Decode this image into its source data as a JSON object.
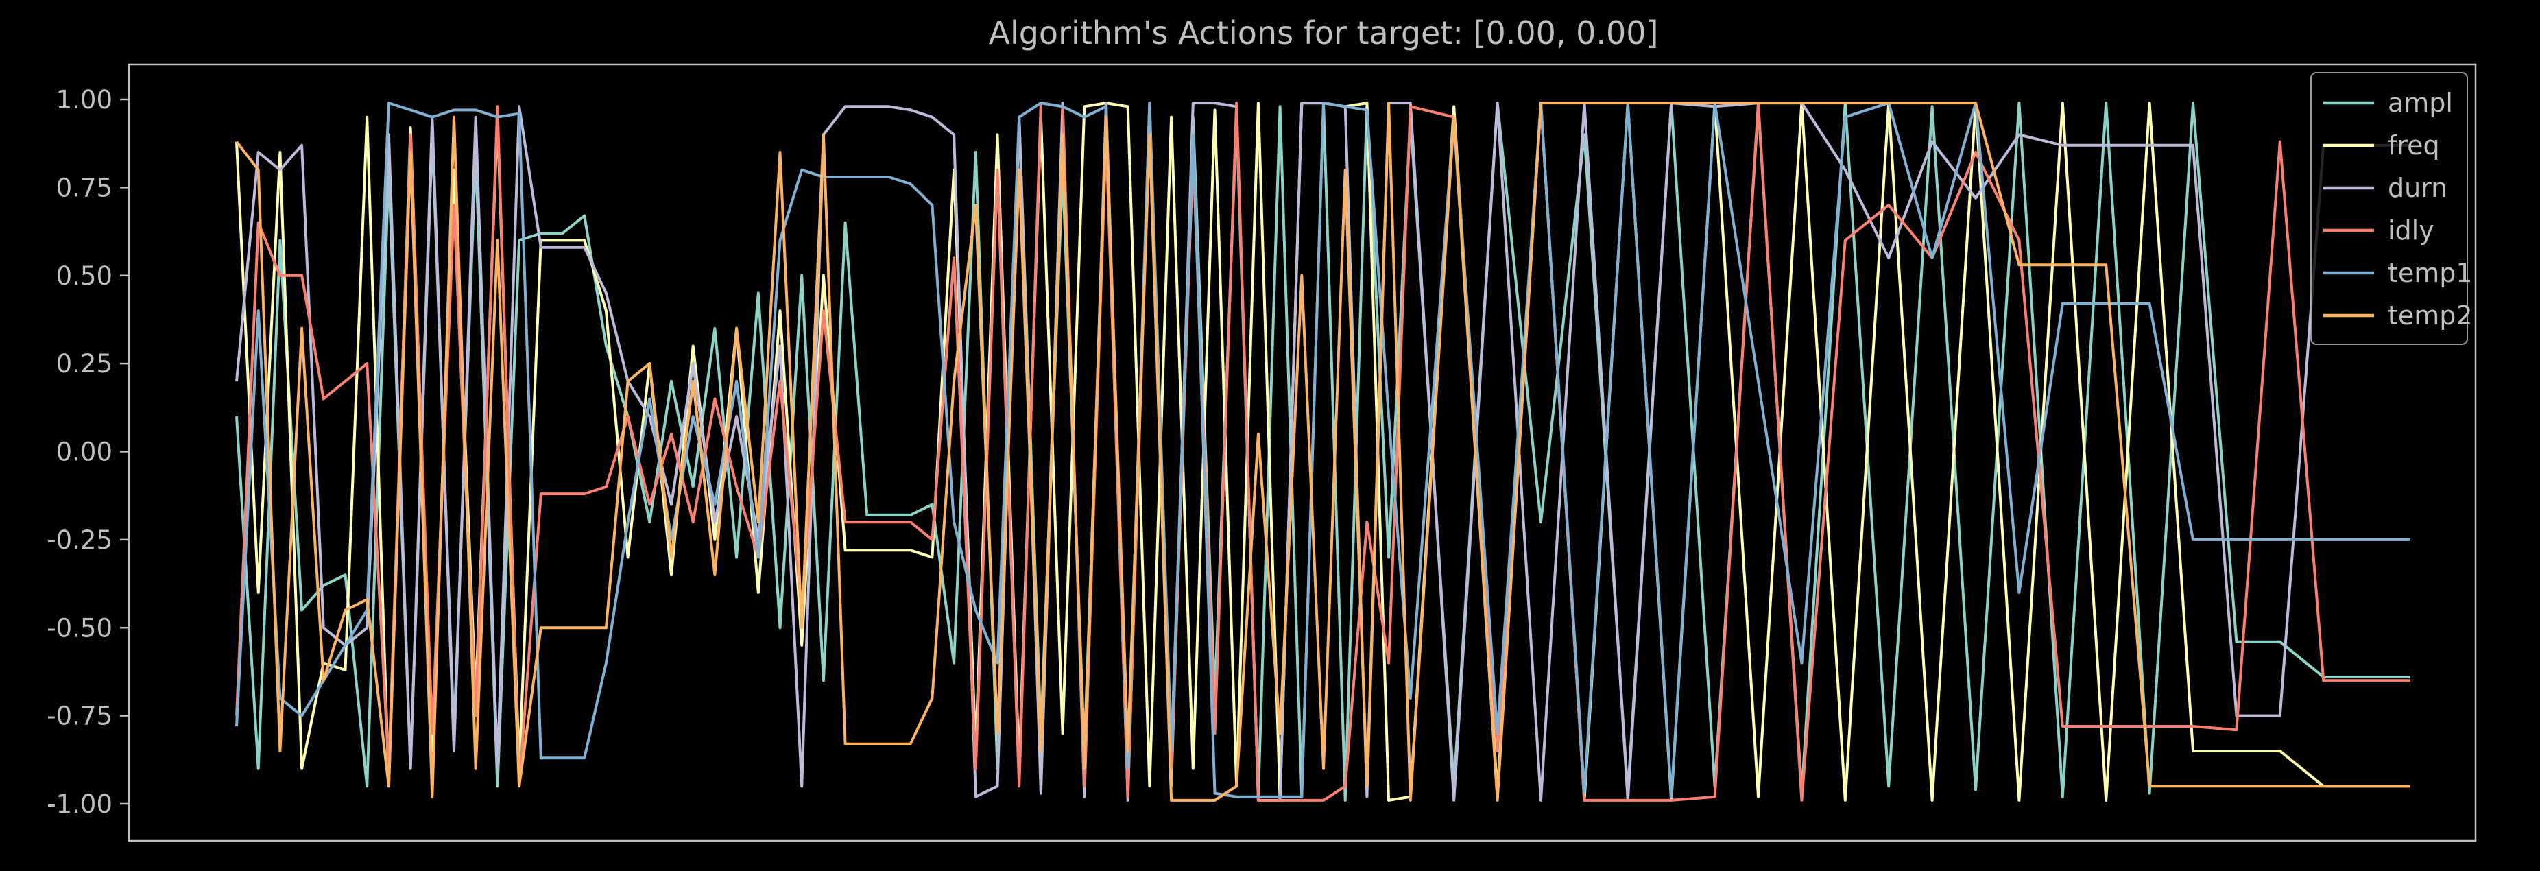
{
  "chart_data": {
    "type": "line",
    "title": "Algorithm's Actions for target:  [0.00, 0.00]",
    "xlabel": "",
    "ylabel": "",
    "xlim": [
      0,
      1000
    ],
    "ylim": [
      -1.1,
      1.1
    ],
    "y_ticks": [
      "1.00",
      "0.75",
      "0.50",
      "0.25",
      "0.00",
      "-0.25",
      "-0.50",
      "-0.75",
      "-1.00"
    ],
    "y_tick_values": [
      1.0,
      0.75,
      0.5,
      0.25,
      0.0,
      -0.25,
      -0.5,
      -0.75,
      -1.0
    ],
    "grid": false,
    "legend_position": "top-right",
    "background": "#000000",
    "series": [
      {
        "name": "ampl",
        "color": "#8dd3c7",
        "x": [
          0,
          10,
          20,
          30,
          40,
          50,
          60,
          70,
          80,
          90,
          100,
          110,
          120,
          130,
          140,
          150,
          160,
          170,
          180,
          190,
          200,
          210,
          220,
          230,
          240,
          250,
          260,
          270,
          280,
          290,
          300,
          310,
          320,
          330,
          340,
          350,
          360,
          370,
          380,
          390,
          400,
          410,
          420,
          430,
          440,
          450,
          460,
          470,
          480,
          490,
          500,
          510,
          520,
          530,
          540,
          560,
          580,
          600,
          620,
          640,
          660,
          680,
          700,
          720,
          740,
          760,
          780,
          800,
          820,
          840,
          860,
          880,
          900,
          920,
          940,
          960,
          980,
          1000
        ],
        "y": [
          0.1,
          -0.9,
          0.6,
          -0.45,
          -0.38,
          -0.35,
          -0.95,
          0.8,
          -0.9,
          0.9,
          -0.8,
          0.85,
          -0.95,
          0.6,
          0.62,
          0.62,
          0.67,
          0.3,
          0.1,
          -0.2,
          0.2,
          -0.1,
          0.35,
          -0.3,
          0.45,
          -0.5,
          0.5,
          -0.65,
          0.65,
          -0.18,
          -0.18,
          -0.18,
          -0.15,
          -0.6,
          0.85,
          -0.9,
          0.95,
          -0.8,
          0.8,
          -0.85,
          0.9,
          -0.95,
          0.98,
          -0.9,
          0.95,
          -0.7,
          0.95,
          -0.98,
          0.98,
          -0.98,
          0.99,
          -0.99,
          0.99,
          -0.3,
          0.95,
          -0.95,
          0.99,
          -0.2,
          0.9,
          -0.97,
          0.99,
          -0.95,
          0.98,
          -0.97,
          0.99,
          -0.95,
          0.98,
          -0.96,
          0.99,
          -0.98,
          0.99,
          -0.97,
          0.99,
          -0.54,
          -0.54,
          -0.64,
          -0.64,
          -0.64
        ]
      },
      {
        "name": "freq",
        "color": "#ffffb3",
        "x": [
          0,
          10,
          20,
          30,
          40,
          50,
          60,
          70,
          80,
          90,
          100,
          110,
          120,
          130,
          140,
          150,
          160,
          170,
          180,
          190,
          200,
          210,
          220,
          230,
          240,
          250,
          260,
          270,
          280,
          290,
          300,
          310,
          320,
          330,
          340,
          350,
          360,
          370,
          380,
          390,
          400,
          410,
          420,
          430,
          440,
          450,
          460,
          470,
          480,
          490,
          500,
          510,
          520,
          530,
          540,
          560,
          580,
          600,
          620,
          640,
          660,
          680,
          700,
          720,
          740,
          760,
          780,
          800,
          820,
          840,
          860,
          880,
          900,
          920,
          940,
          960,
          980,
          1000
        ],
        "y": [
          0.88,
          -0.4,
          0.85,
          -0.9,
          -0.6,
          -0.62,
          0.95,
          -0.95,
          0.92,
          -0.85,
          0.8,
          -0.7,
          0.95,
          -0.9,
          0.6,
          0.6,
          0.6,
          0.4,
          -0.3,
          0.25,
          -0.35,
          0.3,
          -0.25,
          0.35,
          -0.4,
          0.4,
          -0.55,
          0.5,
          -0.28,
          -0.28,
          -0.28,
          -0.28,
          -0.3,
          0.8,
          -0.85,
          0.9,
          -0.9,
          0.95,
          -0.8,
          0.98,
          0.99,
          0.98,
          -0.95,
          0.95,
          -0.9,
          0.97,
          -0.95,
          0.99,
          -0.99,
          0.99,
          0.99,
          0.98,
          0.99,
          -0.99,
          -0.98,
          0.98,
          -0.97,
          0.99,
          -0.99,
          0.99,
          -0.99,
          0.99,
          -0.98,
          0.99,
          -0.99,
          0.99,
          -0.99,
          0.99,
          -0.99,
          0.99,
          -0.99,
          0.99,
          -0.85,
          -0.85,
          -0.85,
          -0.95,
          -0.95,
          -0.95
        ]
      },
      {
        "name": "durn",
        "color": "#bebada",
        "x": [
          0,
          10,
          20,
          30,
          40,
          50,
          60,
          70,
          80,
          90,
          100,
          110,
          120,
          130,
          140,
          150,
          160,
          170,
          180,
          190,
          200,
          210,
          220,
          230,
          240,
          250,
          260,
          270,
          280,
          290,
          300,
          310,
          320,
          330,
          340,
          350,
          360,
          370,
          380,
          390,
          400,
          410,
          420,
          430,
          440,
          450,
          460,
          470,
          480,
          490,
          500,
          510,
          520,
          530,
          540,
          560,
          580,
          600,
          620,
          640,
          660,
          680,
          700,
          720,
          740,
          760,
          780,
          800,
          820,
          840,
          860,
          880,
          900,
          920,
          940,
          960,
          980,
          1000
        ],
        "y": [
          0.2,
          0.85,
          0.8,
          0.87,
          -0.5,
          -0.55,
          -0.5,
          0.9,
          -0.9,
          0.95,
          -0.85,
          0.95,
          -0.9,
          0.98,
          0.58,
          0.58,
          0.58,
          0.45,
          0.2,
          0.1,
          -0.15,
          0.25,
          -0.2,
          0.1,
          -0.25,
          0.3,
          -0.95,
          0.9,
          0.98,
          0.98,
          0.98,
          0.97,
          0.95,
          0.9,
          -0.98,
          -0.95,
          0.95,
          -0.97,
          0.99,
          -0.98,
          0.99,
          -0.99,
          0.99,
          -0.95,
          0.99,
          0.99,
          0.98,
          -0.99,
          -0.99,
          0.99,
          0.99,
          0.98,
          -0.98,
          0.99,
          0.99,
          -0.99,
          0.99,
          -0.99,
          0.99,
          -0.99,
          0.99,
          0.98,
          0.99,
          0.99,
          0.8,
          0.55,
          0.88,
          0.72,
          0.9,
          0.87,
          0.87,
          0.87,
          0.87,
          -0.75,
          -0.75,
          0.87,
          0.87,
          0.87
        ]
      },
      {
        "name": "idly",
        "color": "#fb8072",
        "x": [
          0,
          10,
          20,
          30,
          40,
          50,
          60,
          70,
          80,
          90,
          100,
          110,
          120,
          130,
          140,
          150,
          160,
          170,
          180,
          190,
          200,
          210,
          220,
          230,
          240,
          250,
          260,
          270,
          280,
          290,
          300,
          310,
          320,
          330,
          340,
          350,
          360,
          370,
          380,
          390,
          400,
          410,
          420,
          430,
          440,
          450,
          460,
          470,
          480,
          490,
          500,
          510,
          520,
          530,
          540,
          560,
          580,
          600,
          620,
          640,
          660,
          680,
          700,
          720,
          740,
          760,
          780,
          800,
          820,
          840,
          860,
          880,
          900,
          920,
          940,
          960,
          980,
          1000
        ],
        "y": [
          -0.75,
          0.65,
          0.5,
          0.5,
          0.15,
          0.2,
          0.25,
          -0.9,
          0.9,
          -0.8,
          0.7,
          -0.75,
          0.98,
          -0.95,
          -0.12,
          -0.12,
          -0.12,
          -0.1,
          0.1,
          -0.15,
          0.05,
          -0.2,
          0.15,
          -0.1,
          -0.3,
          0.2,
          -0.45,
          0.4,
          -0.2,
          -0.2,
          -0.2,
          -0.2,
          -0.25,
          0.55,
          -0.9,
          0.8,
          -0.95,
          0.99,
          0.98,
          -0.95,
          0.9,
          -0.98,
          0.95,
          -0.9,
          0.85,
          -0.8,
          0.99,
          -0.99,
          -0.99,
          -0.99,
          -0.99,
          -0.95,
          -0.2,
          -0.6,
          0.98,
          0.95,
          -0.85,
          0.99,
          -0.99,
          -0.99,
          -0.99,
          -0.98,
          0.99,
          -0.99,
          0.6,
          0.7,
          0.55,
          0.85,
          0.6,
          -0.78,
          -0.78,
          -0.78,
          -0.78,
          -0.79,
          0.88,
          -0.65,
          -0.65,
          -0.65
        ]
      },
      {
        "name": "temp1",
        "color": "#80b1d3",
        "x": [
          0,
          10,
          20,
          30,
          40,
          50,
          60,
          70,
          80,
          90,
          100,
          110,
          120,
          130,
          140,
          150,
          160,
          170,
          180,
          190,
          200,
          210,
          220,
          230,
          240,
          250,
          260,
          270,
          280,
          290,
          300,
          310,
          320,
          330,
          340,
          350,
          360,
          370,
          380,
          390,
          400,
          410,
          420,
          430,
          440,
          450,
          460,
          470,
          480,
          490,
          500,
          510,
          520,
          530,
          540,
          560,
          580,
          600,
          620,
          640,
          660,
          680,
          700,
          720,
          740,
          760,
          780,
          800,
          820,
          840,
          860,
          880,
          900,
          920,
          940,
          960,
          980,
          1000
        ],
        "y": [
          -0.78,
          0.4,
          -0.7,
          -0.75,
          -0.65,
          -0.55,
          -0.45,
          0.99,
          0.97,
          0.95,
          0.97,
          0.97,
          0.95,
          0.96,
          -0.87,
          -0.87,
          -0.87,
          -0.6,
          -0.2,
          0.15,
          -0.25,
          0.1,
          -0.15,
          0.2,
          -0.3,
          0.6,
          0.8,
          0.78,
          0.78,
          0.78,
          0.78,
          0.76,
          0.7,
          -0.2,
          -0.45,
          -0.6,
          0.95,
          0.99,
          0.98,
          0.95,
          0.98,
          -0.9,
          0.99,
          -0.85,
          0.9,
          -0.97,
          -0.98,
          -0.98,
          -0.98,
          -0.98,
          0.99,
          0.98,
          0.97,
          0.1,
          -0.7,
          0.95,
          -0.8,
          0.99,
          -0.97,
          0.99,
          -0.98,
          0.99,
          0.2,
          -0.6,
          0.95,
          0.99,
          0.55,
          0.99,
          -0.4,
          0.42,
          0.42,
          0.42,
          -0.25,
          -0.25,
          -0.25,
          -0.25,
          -0.25,
          -0.25
        ]
      },
      {
        "name": "temp2",
        "color": "#fdb462",
        "x": [
          0,
          10,
          20,
          30,
          40,
          50,
          60,
          70,
          80,
          90,
          100,
          110,
          120,
          130,
          140,
          150,
          160,
          170,
          180,
          190,
          200,
          210,
          220,
          230,
          240,
          250,
          260,
          270,
          280,
          290,
          300,
          310,
          320,
          330,
          340,
          350,
          360,
          370,
          380,
          390,
          400,
          410,
          420,
          430,
          440,
          450,
          460,
          470,
          480,
          490,
          500,
          510,
          520,
          530,
          540,
          560,
          580,
          600,
          620,
          640,
          660,
          680,
          700,
          720,
          740,
          760,
          780,
          800,
          820,
          840,
          860,
          880,
          900,
          920,
          940,
          960,
          980,
          1000
        ],
        "y": [
          0.88,
          0.8,
          -0.85,
          0.35,
          -0.65,
          -0.45,
          -0.42,
          -0.95,
          0.85,
          -0.98,
          0.95,
          -0.9,
          0.6,
          -0.95,
          -0.5,
          -0.5,
          -0.5,
          -0.5,
          0.2,
          0.25,
          -0.3,
          0.2,
          -0.35,
          0.35,
          -0.2,
          0.85,
          -0.5,
          0.9,
          -0.83,
          -0.83,
          -0.83,
          -0.83,
          -0.7,
          0.2,
          0.7,
          -0.8,
          0.8,
          -0.85,
          0.9,
          -0.9,
          0.95,
          -0.85,
          0.9,
          -0.99,
          -0.99,
          -0.99,
          -0.95,
          0.05,
          -0.8,
          0.5,
          -0.9,
          0.8,
          -0.95,
          0.99,
          -0.99,
          0.95,
          -0.99,
          0.99,
          0.99,
          0.99,
          0.99,
          0.99,
          0.99,
          0.99,
          0.99,
          0.99,
          0.99,
          0.99,
          0.53,
          0.53,
          0.53,
          -0.95,
          -0.95,
          -0.95,
          -0.95,
          -0.95,
          -0.95,
          -0.95
        ]
      }
    ]
  }
}
